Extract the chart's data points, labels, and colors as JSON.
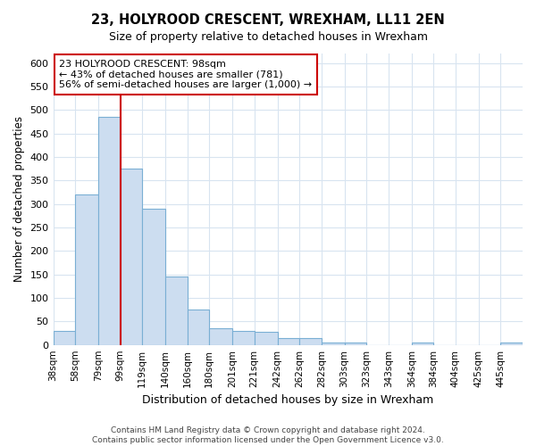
{
  "title": "23, HOLYROOD CRESCENT, WREXHAM, LL11 2EN",
  "subtitle": "Size of property relative to detached houses in Wrexham",
  "xlabel": "Distribution of detached houses by size in Wrexham",
  "ylabel": "Number of detached properties",
  "footer_line1": "Contains HM Land Registry data © Crown copyright and database right 2024.",
  "footer_line2": "Contains public sector information licensed under the Open Government Licence v3.0.",
  "annotation_line1": "23 HOLYROOD CRESCENT: 98sqm",
  "annotation_line2": "← 43% of detached houses are smaller (781)",
  "annotation_line3": "56% of semi-detached houses are larger (1,000) →",
  "property_line_x": 99,
  "bins": [
    38,
    58,
    79,
    99,
    119,
    140,
    160,
    180,
    201,
    221,
    242,
    262,
    282,
    303,
    323,
    343,
    364,
    384,
    404,
    425,
    445
  ],
  "bar_heights": [
    30,
    320,
    485,
    375,
    290,
    145,
    75,
    35,
    30,
    28,
    15,
    15,
    6,
    5,
    0,
    0,
    5,
    0,
    0,
    0,
    5
  ],
  "bar_color": "#ccddf0",
  "bar_edge_color": "#7aafd4",
  "grid_color": "#d8e4f0",
  "line_color": "#cc0000",
  "annotation_box_color": "#cc0000",
  "ylim": [
    0,
    620
  ],
  "yticks": [
    0,
    50,
    100,
    150,
    200,
    250,
    300,
    350,
    400,
    450,
    500,
    550,
    600
  ],
  "background_color": "#ffffff",
  "fig_width": 6.0,
  "fig_height": 5.0
}
